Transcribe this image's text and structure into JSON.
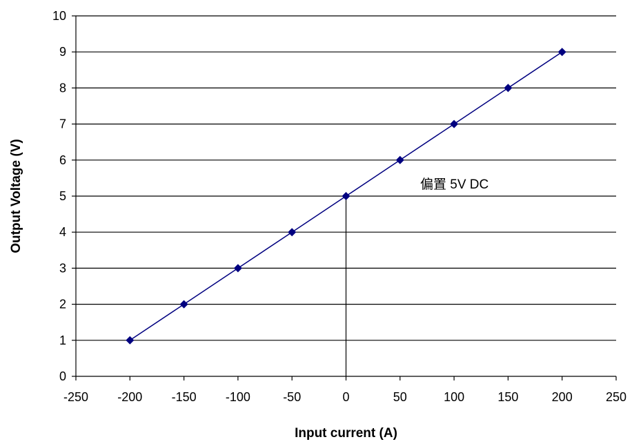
{
  "chart_data": {
    "type": "scatter",
    "xlabel": "Input current (A)",
    "ylabel": "Output Voltage (V)",
    "xlim": [
      -250,
      250
    ],
    "ylim": [
      0,
      10
    ],
    "x_ticks": [
      -250,
      -200,
      -150,
      -100,
      -50,
      0,
      50,
      100,
      150,
      200,
      250
    ],
    "y_ticks": [
      0,
      1,
      2,
      3,
      4,
      5,
      6,
      7,
      8,
      9,
      10
    ],
    "grid": "horizontal",
    "legend": "none",
    "series": [
      {
        "x": [
          -200,
          -150,
          -100,
          -50,
          0,
          50,
          100,
          150,
          200
        ],
        "y": [
          1,
          2,
          3,
          4,
          5,
          6,
          7,
          8,
          9
        ],
        "color": "#000080",
        "marker": "diamond",
        "line": true
      }
    ],
    "annotations": [
      {
        "text": "偏置 5V DC",
        "x": 0,
        "y": 5,
        "leader": "vertical line from point down to x-axis"
      }
    ]
  }
}
